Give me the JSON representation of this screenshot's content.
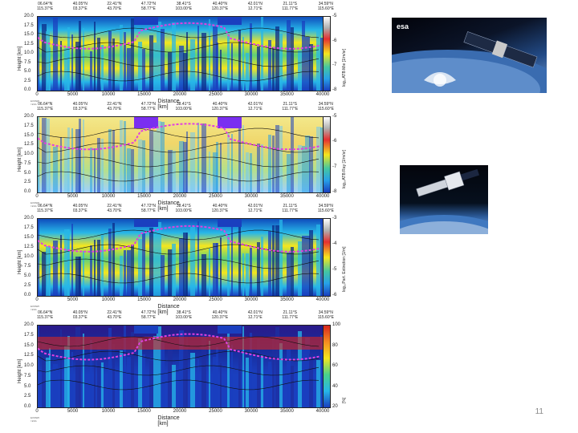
{
  "slide": {
    "page_number": "11"
  },
  "coords_labels": [
    "06.64°N\n115.37°E",
    "40.05°N\n03.37°E",
    "22.41°N\n43.70°E",
    "47.72°N\n58.77°E",
    "38.41°S\n103.00°E",
    "40.40°N\n120.37°E",
    "42.01°N\n12.71°E",
    "21.11°S\n111.77°E",
    "34.59°N\n115.60°E"
  ],
  "x_ticks": [
    "0",
    "5000",
    "10000",
    "15000",
    "20000",
    "25000",
    "30000",
    "35000",
    "40000"
  ],
  "y_ticks": [
    "20.0",
    "17.5",
    "15.0",
    "12.5",
    "10.0",
    "7.5",
    "5.0",
    "2.5",
    "0.0"
  ],
  "panels": [
    {
      "ylabel": "Height [km]",
      "xlabel": "Distance [km]",
      "cbar_label": "log₁₀ATB Mie [1/m/sr]",
      "cbar_ticks": [
        "-5",
        "-6",
        "-7",
        "-8"
      ],
      "style": "mie"
    },
    {
      "ylabel": "Height [km]",
      "xlabel": "Distance [km]",
      "cbar_label": "log₁₀ATB Ray [1/m/sr]",
      "cbar_ticks": [
        "-5",
        "-6",
        "-7",
        "-8"
      ],
      "style": "ray"
    },
    {
      "ylabel": "Height [km]",
      "xlabel": "Distance [km]",
      "cbar_label": "log₁₀Part. Extinction [1/m]",
      "cbar_ticks": [
        "-3",
        "-4",
        "-5",
        "-6"
      ],
      "style": "ext"
    },
    {
      "ylabel": "Height [km]",
      "xlabel": "Distance [km]",
      "cbar_label": "[%]",
      "cbar_ticks": [
        "100",
        "80",
        "60",
        "40",
        "20"
      ],
      "style": "pct"
    }
  ],
  "contour_labels": [
    "260",
    "270",
    "250",
    "230",
    "220",
    "210"
  ],
  "credit": "ECMWF / ESA",
  "photos": [
    {
      "name": "esa-satellite-photo",
      "logo": "esa"
    },
    {
      "name": "earthcare-satellite-photo"
    }
  ],
  "colors": {
    "jet_blue": "#1a3fbf",
    "jet_yellow": "#f5e61e",
    "jet_red": "#d8261e",
    "purple": "#7a2ff0",
    "magenta": "#e040e0"
  }
}
